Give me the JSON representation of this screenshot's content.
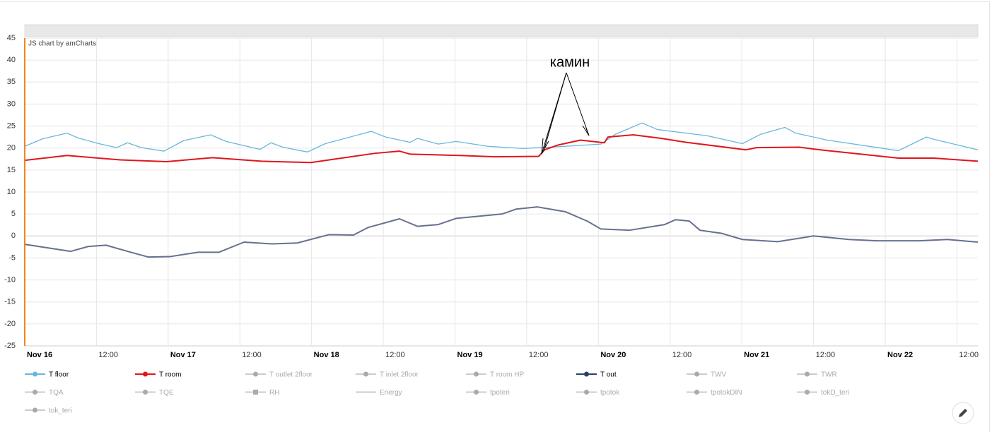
{
  "chart_data": {
    "type": "line",
    "credit": "JS chart by amCharts",
    "annotation": "камин",
    "xlim": [
      0,
      159.5
    ],
    "xticks": [
      {
        "value": 0,
        "label": "Nov 16"
      },
      {
        "value": 12,
        "label": "12:00"
      },
      {
        "value": 24,
        "label": "Nov 17"
      },
      {
        "value": 36,
        "label": "12:00"
      },
      {
        "value": 48,
        "label": "Nov 18"
      },
      {
        "value": 60,
        "label": "12:00"
      },
      {
        "value": 72,
        "label": "Nov 19"
      },
      {
        "value": 84,
        "label": "12:00"
      },
      {
        "value": 96,
        "label": "Nov 20"
      },
      {
        "value": 108,
        "label": "12:00"
      },
      {
        "value": 120,
        "label": "Nov 21"
      },
      {
        "value": 132,
        "label": "12:00"
      },
      {
        "value": 144,
        "label": "Nov 22"
      },
      {
        "value": 156,
        "label": "12:00"
      }
    ],
    "ylim": [
      -25,
      45
    ],
    "yticks": [
      45,
      40,
      35,
      30,
      25,
      20,
      15,
      10,
      5,
      0,
      -5,
      -10,
      -15,
      -20,
      -25
    ],
    "grid": true,
    "series": [
      {
        "name": "T floor",
        "color": "#67b7dc",
        "x": [
          0,
          3,
          7.1,
          8.9,
          12.4,
          15.4,
          17.2,
          19.5,
          23.3,
          26.6,
          31.1,
          33.7,
          39.4,
          41.2,
          43.2,
          47.3,
          50.3,
          58,
          60.4,
          64.5,
          65.7,
          69.2,
          72.2,
          77.5,
          83.4,
          86.4,
          90.5,
          96.4,
          98.8,
          103.3,
          105.9,
          114.2,
          120.1,
          123.1,
          127.2,
          129,
          134.3,
          146.2,
          150.9,
          152.1,
          159.5
        ],
        "values": [
          20.4,
          22.1,
          23.4,
          22.3,
          21.0,
          20.1,
          21.2,
          20.1,
          19.3,
          21.7,
          23.0,
          21.5,
          19.7,
          21.2,
          20.2,
          19.1,
          21.0,
          23.8,
          22.5,
          21.3,
          22.2,
          20.9,
          21.5,
          20.4,
          19.9,
          20.1,
          20.4,
          20.9,
          23.1,
          25.7,
          24.2,
          22.8,
          21.0,
          23.1,
          24.7,
          23.4,
          21.8,
          19.4,
          22.5,
          22.0,
          19.6
        ]
      },
      {
        "name": "T room",
        "color": "#e0161b",
        "x": [
          0,
          7.1,
          16,
          23.7,
          31.4,
          39.6,
          47.9,
          58.6,
          62.7,
          64.5,
          72.8,
          78.7,
          86,
          87,
          89.3,
          93,
          97,
          97.6,
          101.8,
          106.5,
          110.7,
          120.7,
          122.5,
          129.6,
          133.1,
          146.2,
          152.1,
          159.5
        ],
        "values": [
          17.2,
          18.3,
          17.3,
          16.9,
          17.8,
          17.0,
          16.7,
          18.8,
          19.3,
          18.6,
          18.3,
          18.0,
          18.1,
          19.6,
          20.7,
          21.8,
          21.2,
          22.5,
          23.0,
          22.2,
          21.3,
          19.6,
          20.1,
          20.2,
          19.6,
          17.7,
          17.7,
          17.0
        ]
      },
      {
        "name": "T outlet 2floor",
        "hidden": true
      },
      {
        "name": "T inlet 2floor",
        "hidden": true
      },
      {
        "name": "T room HP",
        "hidden": true
      },
      {
        "name": "T out",
        "color": "#67708f",
        "legend_color": "#2c3e6e",
        "x": [
          0,
          7.7,
          10.6,
          13.6,
          17.2,
          20.7,
          24.3,
          29,
          32.5,
          36.7,
          41.4,
          45.6,
          50.9,
          55,
          57.4,
          62.7,
          65.7,
          69.2,
          72.2,
          79.9,
          82.2,
          85.8,
          90.5,
          94.1,
          96.4,
          101.2,
          107.1,
          108.9,
          111.2,
          113,
          116.6,
          120.1,
          126,
          132,
          137.9,
          142.6,
          149.7,
          154.4,
          159.5
        ],
        "values": [
          -1.9,
          -3.5,
          -2.4,
          -2.1,
          -3.5,
          -4.8,
          -4.7,
          -3.7,
          -3.7,
          -1.4,
          -1.8,
          -1.6,
          0.3,
          0.2,
          1.9,
          3.9,
          2.2,
          2.6,
          4.0,
          5.0,
          6.1,
          6.6,
          5.5,
          3.4,
          1.6,
          1.3,
          2.6,
          3.7,
          3.4,
          1.3,
          0.6,
          -0.8,
          -1.3,
          0.0,
          -0.8,
          -1.1,
          -1.1,
          -0.8,
          -1.4
        ]
      },
      {
        "name": "TWV",
        "hidden": true
      },
      {
        "name": "TWR",
        "hidden": true
      },
      {
        "name": "TQA",
        "hidden": true
      },
      {
        "name": "TQE",
        "hidden": true
      },
      {
        "name": "RH",
        "hidden": true,
        "marker": "square"
      },
      {
        "name": "Energy",
        "hidden": true,
        "marker": "none"
      },
      {
        "name": "tpoteri",
        "hidden": true
      },
      {
        "name": "tpotok",
        "hidden": true
      },
      {
        "name": "tpotokDIN",
        "hidden": true
      },
      {
        "name": "tokD_teri",
        "hidden": true
      },
      {
        "name": "tok_teri",
        "hidden": true
      }
    ]
  }
}
